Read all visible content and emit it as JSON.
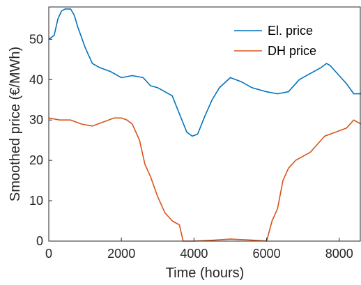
{
  "chart_data": {
    "type": "line",
    "title": "",
    "xlabel": "Time (hours)",
    "ylabel": "Smoothed price (€/MWh)",
    "xlim": [
      0,
      8600
    ],
    "ylim": [
      0,
      58
    ],
    "xticks": [
      0,
      2000,
      4000,
      6000,
      8000
    ],
    "xtick_labels": [
      "0",
      "2000",
      "4000",
      "6000",
      "8000"
    ],
    "yticks": [
      0,
      10,
      20,
      30,
      40,
      50
    ],
    "ytick_labels": [
      "0",
      "10",
      "20",
      "30",
      "40",
      "50"
    ],
    "grid": false,
    "legend_position": "top-right",
    "series": [
      {
        "name": "El. price",
        "color": "#0072BD",
        "x": [
          0,
          150,
          250,
          350,
          450,
          600,
          700,
          800,
          1000,
          1200,
          1400,
          1700,
          2000,
          2300,
          2600,
          2800,
          3000,
          3200,
          3400,
          3600,
          3800,
          3950,
          4100,
          4300,
          4500,
          4700,
          5000,
          5300,
          5600,
          6000,
          6300,
          6600,
          6900,
          7200,
          7500,
          7650,
          7750,
          8000,
          8200,
          8400,
          8600
        ],
        "values": [
          50,
          51,
          55,
          57,
          57.5,
          57.5,
          56,
          53,
          48,
          44,
          43,
          42,
          40.5,
          41,
          40.5,
          38.5,
          38,
          37,
          36,
          31.5,
          27,
          26,
          26.5,
          31,
          35,
          38,
          40.5,
          39.5,
          38,
          37,
          36.5,
          37,
          40,
          41.5,
          43,
          44,
          43.5,
          41,
          39,
          36.5,
          36.5
        ]
      },
      {
        "name": "DH price",
        "color": "#D95319",
        "x": [
          0,
          300,
          600,
          900,
          1200,
          1500,
          1800,
          2000,
          2150,
          2300,
          2500,
          2650,
          2800,
          3000,
          3200,
          3400,
          3600,
          3700,
          4000,
          4500,
          5000,
          5500,
          6000,
          6150,
          6300,
          6450,
          6600,
          6800,
          7000,
          7200,
          7400,
          7600,
          7900,
          8200,
          8400,
          8600
        ],
        "values": [
          30.5,
          30,
          30,
          29,
          28.5,
          29.5,
          30.5,
          30.5,
          30,
          29,
          25,
          19,
          16,
          11,
          7,
          5,
          4,
          0,
          0,
          0.2,
          0.5,
          0.3,
          0,
          5,
          8,
          15,
          18,
          20,
          21,
          22,
          24,
          26,
          27,
          28,
          30,
          29
        ]
      }
    ]
  }
}
